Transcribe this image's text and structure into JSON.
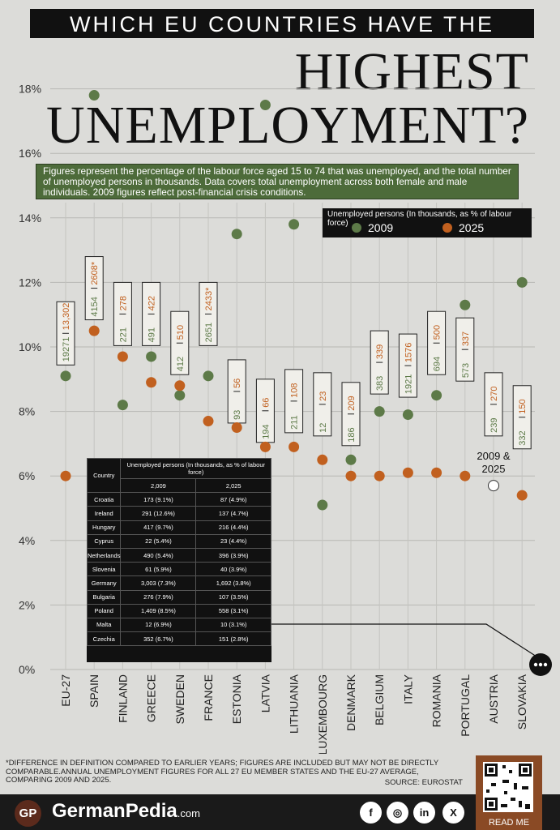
{
  "header": {
    "top_line": "WHICH EU COUNTRIES HAVE THE",
    "line2": "HIGHEST",
    "line3": "UNEMPLOYMENT?"
  },
  "description": "Figures represent the percentage of the labour force aged 15 to 74 that was unemployed, and the total number of unemployed persons in thousands. Data covers total unemployment across both female and male individuals. 2009 figures reflect post-financial crisis conditions.",
  "legend": {
    "title": "Unemployed persons (In thousands, as % of labour force)",
    "items": [
      {
        "label": "2009",
        "color": "#5d7a48"
      },
      {
        "label": "2025",
        "color": "#c1601f"
      }
    ]
  },
  "chart_data": {
    "type": "scatter",
    "ylim": [
      0,
      18
    ],
    "yticks": [
      "0%",
      "2%",
      "4%",
      "6%",
      "8%",
      "10%",
      "12%",
      "14%",
      "16%",
      "18%"
    ],
    "categories": [
      "EU-27",
      "SPAIN",
      "FINLAND",
      "GREECE",
      "SWEDEN",
      "FRANCE",
      "ESTONIA",
      "LATVIA",
      "LITHUANIA",
      "LUXEMBOURG",
      "DENMARK",
      "BELGIUM",
      "ITALY",
      "ROMANIA",
      "PORTUGAL",
      "AUSTRIA",
      "SLOVAKIA"
    ],
    "series": [
      {
        "name": "2009",
        "color": "#5d7a48",
        "values": [
          9.1,
          17.8,
          8.2,
          9.7,
          8.5,
          9.1,
          13.5,
          17.5,
          13.8,
          5.1,
          6.5,
          8.0,
          7.9,
          8.5,
          11.3,
          5.7,
          12.0
        ]
      },
      {
        "name": "2025",
        "color": "#c1601f",
        "values": [
          6.0,
          10.5,
          9.7,
          8.9,
          8.8,
          7.7,
          7.5,
          6.9,
          6.9,
          6.5,
          6.0,
          6.0,
          6.1,
          6.1,
          6.0,
          5.7,
          5.4
        ]
      }
    ],
    "box_2009_labels": [
      "19271",
      "4154",
      "221",
      "491",
      "412",
      "2651",
      "93",
      "194",
      "211",
      "12",
      "186",
      "383",
      "1921",
      "694",
      "573",
      "239",
      "332"
    ],
    "box_2025_labels": [
      "13,302",
      "2608*",
      "278",
      "422",
      "510",
      "2433*",
      "56",
      "66",
      "108",
      "23",
      "209",
      "339",
      "1576",
      "500",
      "337",
      "270",
      "150"
    ],
    "box_top_pct": [
      11.4,
      12.8,
      12.0,
      12.0,
      11.1,
      12.0,
      9.6,
      9.0,
      9.3,
      9.2,
      8.9,
      10.5,
      10.4,
      11.1,
      10.9,
      9.2,
      8.8
    ],
    "combined_label": [
      "2009 &",
      "2025"
    ],
    "combined_index": 15
  },
  "table": {
    "headers": [
      "Country",
      "Unemployed persons (In thousands, as % of labour force)"
    ],
    "subheaders": [
      "2,009",
      "2,025"
    ],
    "rows": [
      [
        "Croatia",
        "173 (9.1%)",
        "87 (4.9%)"
      ],
      [
        "Ireland",
        "291 (12.6%)",
        "137 (4.7%)"
      ],
      [
        "Hungary",
        "417 (9.7%)",
        "216 (4.4%)"
      ],
      [
        "Cyprus",
        "22 (5.4%)",
        "23 (4.4%)"
      ],
      [
        "Netherlands",
        "490 (5.4%)",
        "396 (3.9%)"
      ],
      [
        "Slovenia",
        "61 (5.9%)",
        "40 (3.9%)"
      ],
      [
        "Germany",
        "3,003 (7.3%)",
        "1,692 (3.8%)"
      ],
      [
        "Bulgaria",
        "276 (7.9%)",
        "107 (3.5%)"
      ],
      [
        "Poland",
        "1,409 (8.5%)",
        "558 (3.1%)"
      ],
      [
        "Malta",
        "12 (6.9%)",
        "10 (3.1%)"
      ],
      [
        "Czechia",
        "352 (6.7%)",
        "151 (2.8%)"
      ]
    ]
  },
  "footnote": "*DIFFERENCE IN DEFINITION COMPARED TO EARLIER YEARS; FIGURES ARE INCLUDED BUT MAY NOT BE DIRECTLY COMPARABLE.ANNUAL UNEMPLOYMENT FIGURES FOR ALL 27 EU MEMBER STATES AND THE EU-27 AVERAGE, COMPARING 2009 AND 2025.",
  "source": "SOURCE: EUROSTAT",
  "footer": {
    "logo": "GP",
    "brand": "GermanPedia",
    "brand_suffix": ".com",
    "social": [
      "f",
      "◎",
      "in",
      "X"
    ],
    "read_me": "READ ME"
  }
}
